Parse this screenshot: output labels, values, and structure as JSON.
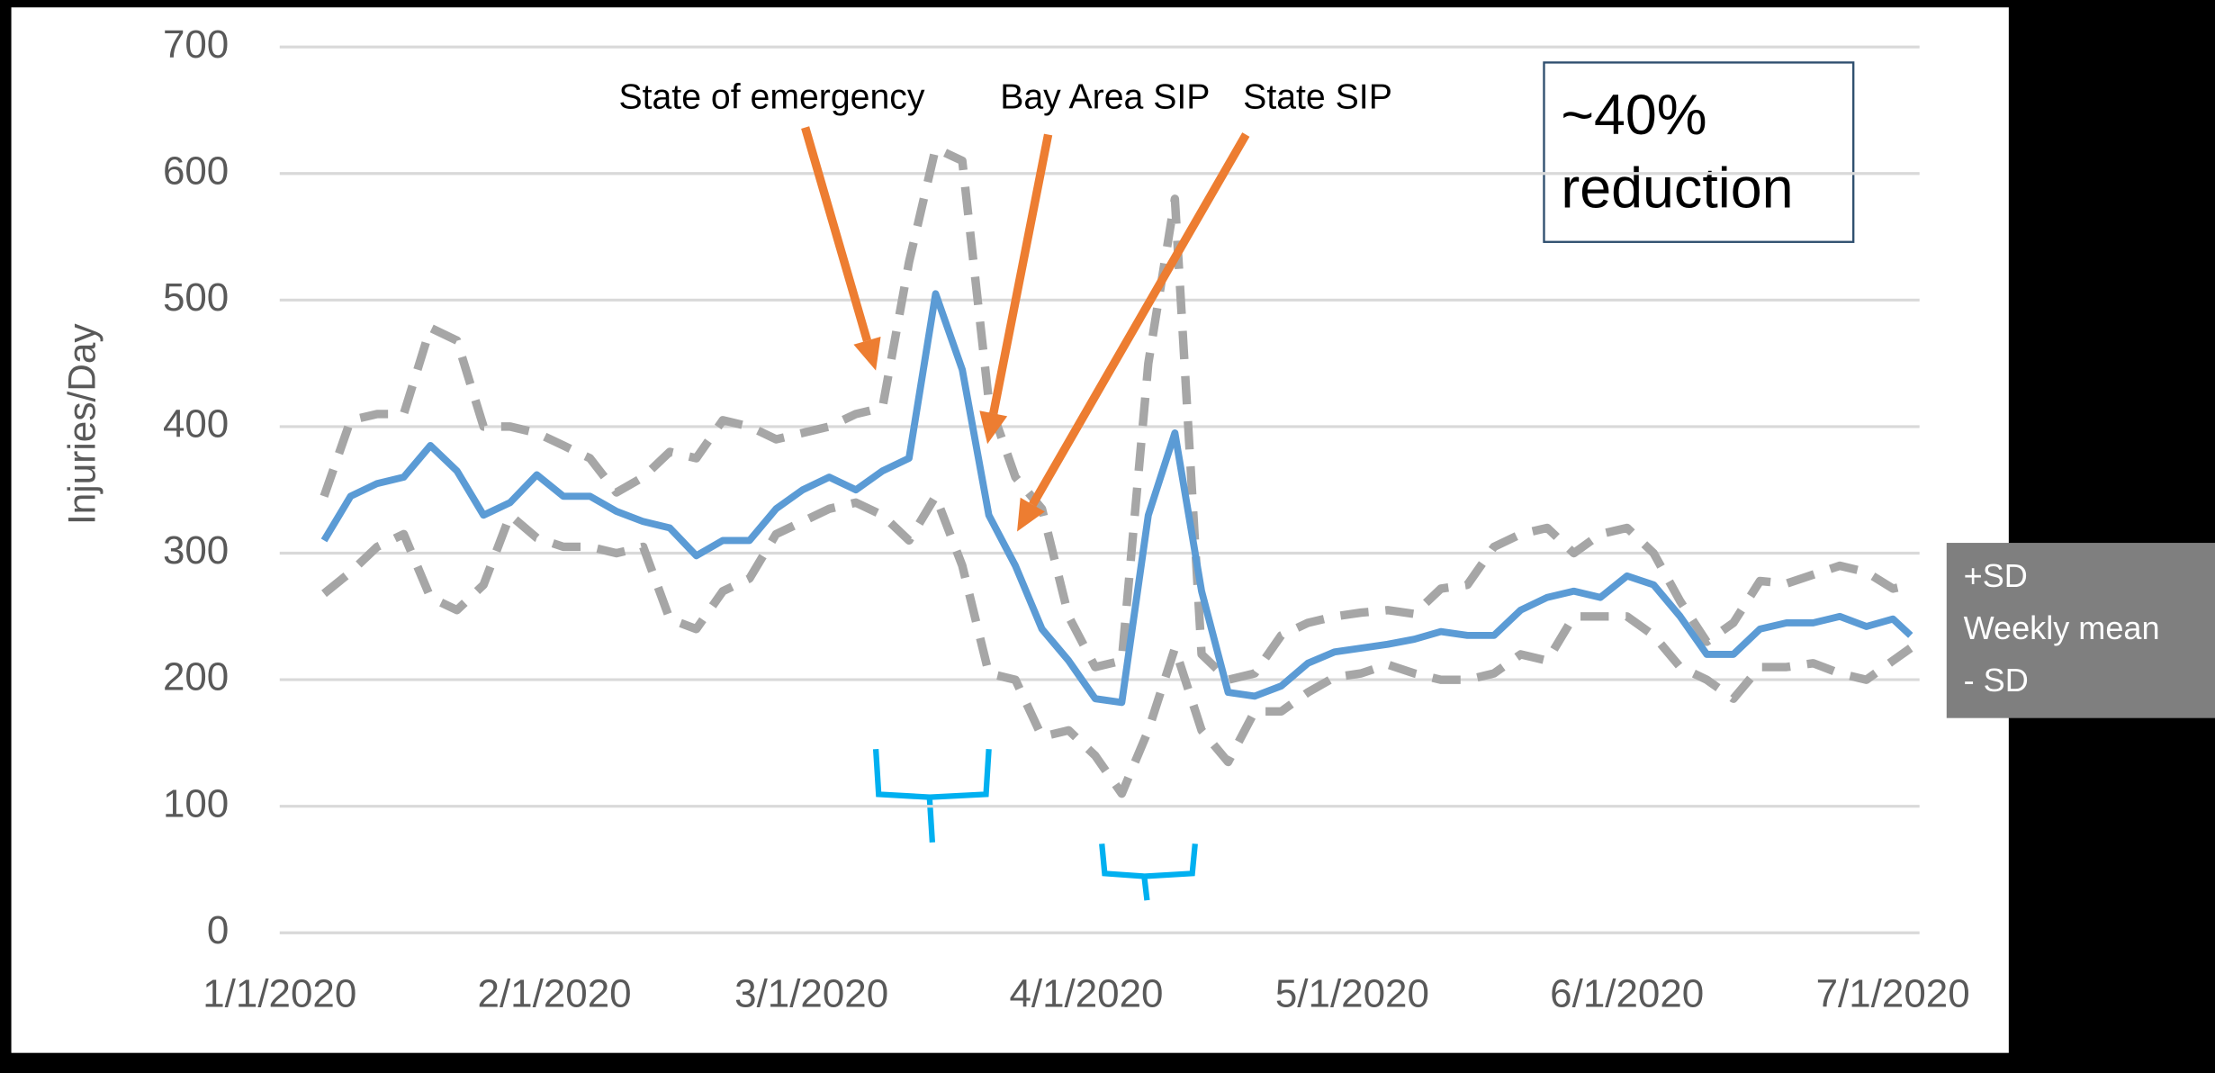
{
  "chart_data": {
    "type": "line",
    "y_axis_label": "Injuries/Day",
    "x": [
      "1/6/2020",
      "1/9/2020",
      "1/12/2020",
      "1/15/2020",
      "1/18/2020",
      "1/21/2020",
      "1/24/2020",
      "1/27/2020",
      "1/30/2020",
      "2/2/2020",
      "2/5/2020",
      "2/8/2020",
      "2/11/2020",
      "2/14/2020",
      "2/17/2020",
      "2/20/2020",
      "2/23/2020",
      "2/26/2020",
      "2/29/2020",
      "3/3/2020",
      "3/6/2020",
      "3/9/2020",
      "3/12/2020",
      "3/15/2020",
      "3/18/2020",
      "3/21/2020",
      "3/24/2020",
      "3/27/2020",
      "3/30/2020",
      "4/2/2020",
      "4/5/2020",
      "4/8/2020",
      "4/11/2020",
      "4/14/2020",
      "4/17/2020",
      "4/20/2020",
      "4/23/2020",
      "4/26/2020",
      "4/29/2020",
      "5/2/2020",
      "5/5/2020",
      "5/8/2020",
      "5/11/2020",
      "5/14/2020",
      "5/17/2020",
      "5/20/2020",
      "5/23/2020",
      "5/26/2020",
      "5/29/2020",
      "6/1/2020",
      "6/4/2020",
      "6/7/2020",
      "6/10/2020",
      "6/13/2020",
      "6/16/2020",
      "6/19/2020",
      "6/22/2020",
      "6/25/2020",
      "6/28/2020",
      "7/1/2020",
      "7/3/2020"
    ],
    "series": [
      {
        "name": "+SD",
        "color": "#a6a6a6",
        "dashed": true,
        "values": [
          345,
          405,
          410,
          410,
          478,
          468,
          400,
          400,
          395,
          385,
          375,
          348,
          360,
          380,
          375,
          405,
          400,
          390,
          395,
          400,
          410,
          415,
          530,
          620,
          610,
          420,
          360,
          335,
          250,
          210,
          215,
          450,
          580,
          220,
          200,
          205,
          235,
          245,
          250,
          253,
          255,
          252,
          272,
          275,
          305,
          315,
          320,
          300,
          315,
          320,
          300,
          262,
          230,
          245,
          278,
          276,
          283,
          290,
          285,
          272,
          275
        ]
      },
      {
        "name": "Weekly mean",
        "color": "#5b9bd5",
        "dashed": false,
        "values": [
          310,
          345,
          355,
          360,
          385,
          365,
          330,
          340,
          362,
          345,
          345,
          333,
          325,
          320,
          298,
          310,
          310,
          335,
          350,
          360,
          350,
          365,
          375,
          505,
          445,
          330,
          290,
          240,
          215,
          185,
          182,
          330,
          395,
          270,
          190,
          187,
          195,
          213,
          222,
          225,
          228,
          232,
          238,
          235,
          235,
          255,
          265,
          270,
          265,
          282,
          275,
          250,
          220,
          220,
          240,
          245,
          245,
          250,
          242,
          248,
          235
        ]
      },
      {
        "name": "- SD",
        "color": "#a6a6a6",
        "dashed": true,
        "values": [
          268,
          285,
          305,
          315,
          265,
          255,
          275,
          330,
          312,
          305,
          305,
          300,
          305,
          248,
          240,
          270,
          280,
          315,
          325,
          335,
          340,
          330,
          310,
          345,
          290,
          205,
          200,
          155,
          160,
          140,
          110,
          160,
          225,
          160,
          135,
          175,
          175,
          190,
          202,
          205,
          212,
          205,
          200,
          200,
          205,
          220,
          215,
          250,
          250,
          250,
          235,
          210,
          200,
          185,
          210,
          210,
          213,
          205,
          200,
          215,
          225
        ]
      }
    ],
    "xlim": [
      "1/1/2020",
      "7/4/2020"
    ],
    "xticks": [
      "1/1/2020",
      "2/1/2020",
      "3/1/2020",
      "4/1/2020",
      "5/1/2020",
      "6/1/2020",
      "7/1/2020"
    ],
    "ylim": [
      0,
      700
    ],
    "yticks": [
      0,
      100,
      200,
      300,
      400,
      500,
      600,
      700
    ],
    "grid": true,
    "legend": "right",
    "annotations": [
      "State of emergency",
      "Bay Area SIP",
      "State SIP"
    ],
    "annotation_color": "#ed7d31",
    "box_text": [
      "~40%",
      "reduction"
    ]
  }
}
